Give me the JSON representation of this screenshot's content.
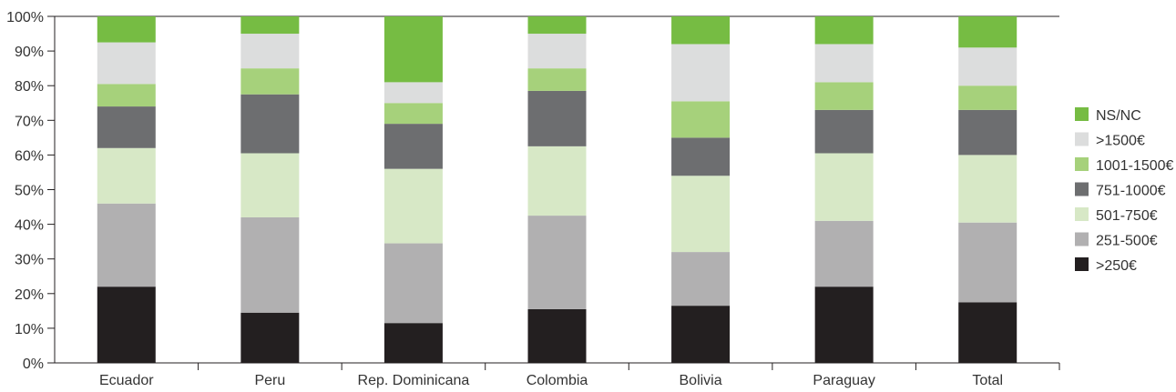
{
  "chart_data": {
    "type": "bar",
    "stacked": true,
    "y_unit": "%",
    "ylim": [
      0,
      100
    ],
    "y_ticks": [
      0,
      10,
      20,
      30,
      40,
      50,
      60,
      70,
      80,
      90,
      100
    ],
    "y_tick_labels": [
      "0%",
      "10%",
      "20%",
      "30%",
      "40%",
      "50%",
      "60%",
      "70%",
      "80%",
      "90%",
      "100%"
    ],
    "grid": "top line only",
    "legend_position": "right",
    "categories": [
      "Ecuador",
      "Peru",
      "Rep. Dominicana",
      "Colombia",
      "Bolivia",
      "Paraguay",
      "Total"
    ],
    "series": [
      {
        "name": ">250€",
        "color": "#231f20",
        "values": [
          22,
          14.5,
          11.5,
          15.5,
          16.5,
          22,
          17.5
        ]
      },
      {
        "name": "251-500€",
        "color": "#b1b0b1",
        "values": [
          24,
          27.5,
          23,
          27,
          15.5,
          19,
          23
        ]
      },
      {
        "name": "501-750€",
        "color": "#d7e8c6",
        "values": [
          16,
          18.5,
          21.5,
          20,
          22,
          19.5,
          19.5
        ]
      },
      {
        "name": "751-1000€",
        "color": "#6d6e70",
        "values": [
          12,
          17,
          13,
          16,
          11,
          12.5,
          13
        ]
      },
      {
        "name": "1001-1500€",
        "color": "#a6d17b",
        "values": [
          6.5,
          7.5,
          6,
          6.5,
          10.5,
          8,
          7
        ]
      },
      {
        "name": ">1500€",
        "color": "#dcdddd",
        "values": [
          12,
          10,
          6,
          10,
          16.5,
          11,
          11
        ]
      },
      {
        "name": "NS/NC",
        "color": "#76bc43",
        "values": [
          7.5,
          5,
          19,
          5,
          8,
          8,
          9
        ]
      }
    ],
    "legend_order": [
      "NS/NC",
      ">1500€",
      "1001-1500€",
      "751-1000€",
      "501-750€",
      "251-500€",
      ">250€"
    ]
  }
}
